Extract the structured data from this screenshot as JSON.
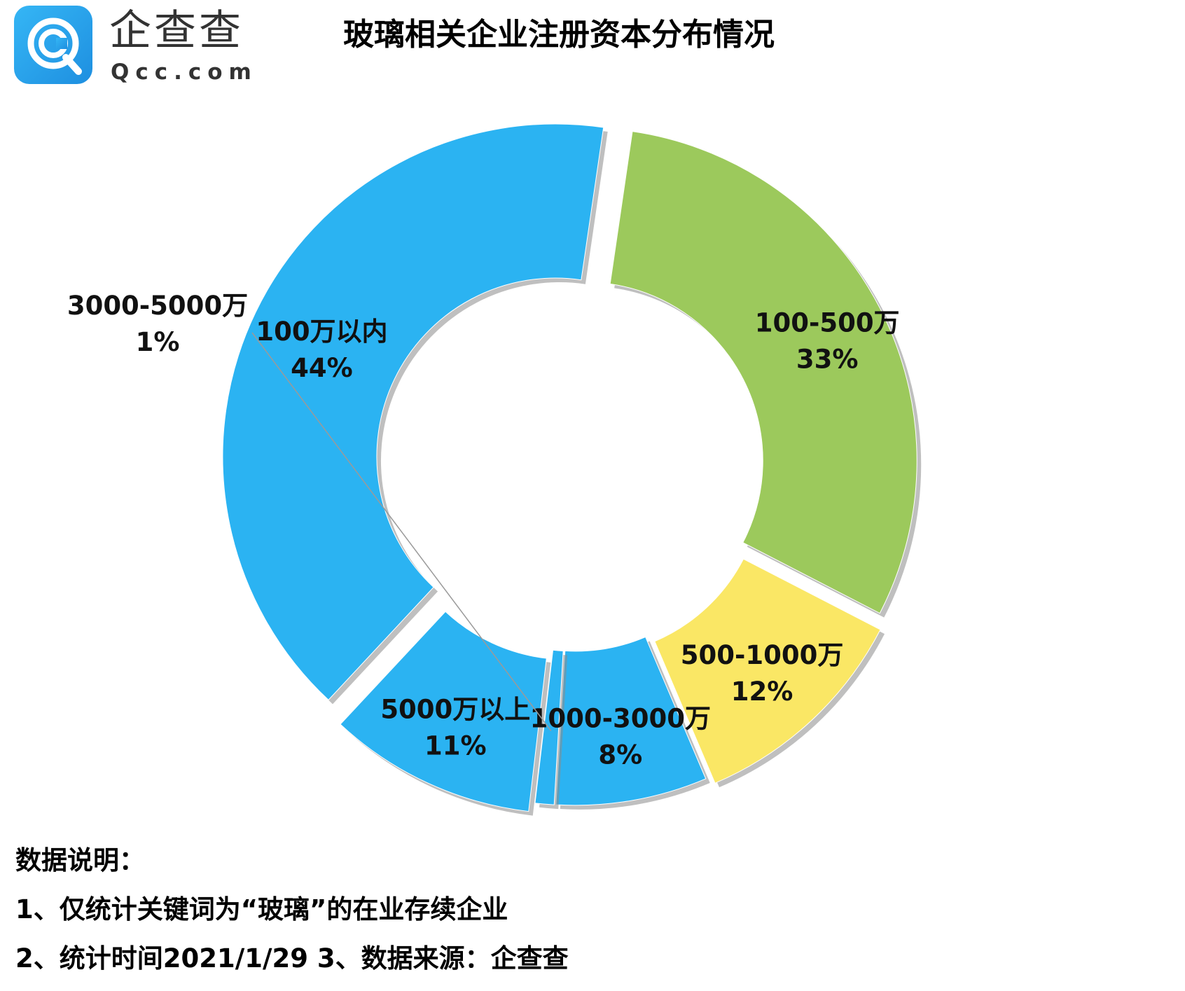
{
  "logo": {
    "name_cn": "企查查",
    "name_en": "Qcc.com",
    "brand_color": "#2aa4ee"
  },
  "title": "玻璃相关企业注册资本分布情况",
  "chart_data": {
    "type": "pie",
    "style": "donut, exploded slices",
    "title": "玻璃相关企业注册资本分布情况",
    "categories": [
      "100万以内",
      "100-500万",
      "500-1000万",
      "1000-3000万",
      "3000-5000万",
      "5000万以上"
    ],
    "values": [
      44,
      33,
      12,
      8,
      1,
      11
    ],
    "value_labels": [
      "44%",
      "33%",
      "12%",
      "8%",
      "1%",
      "11%"
    ],
    "unit": "%",
    "colors": [
      "#2bb3f2",
      "#9cc95c",
      "#fae765",
      "#2bb3f2",
      "#2bb3f2",
      "#2bb3f2"
    ],
    "legend": "none",
    "data_labels": "category and percent on slices; 3000-5000万 label outside with leader line"
  },
  "notes": {
    "heading": "数据说明：",
    "line1": "1、仅统计关键词为“玻璃”的在业存续企业",
    "line2": "2、统计时间2021/1/29    3、数据来源：企查查"
  }
}
